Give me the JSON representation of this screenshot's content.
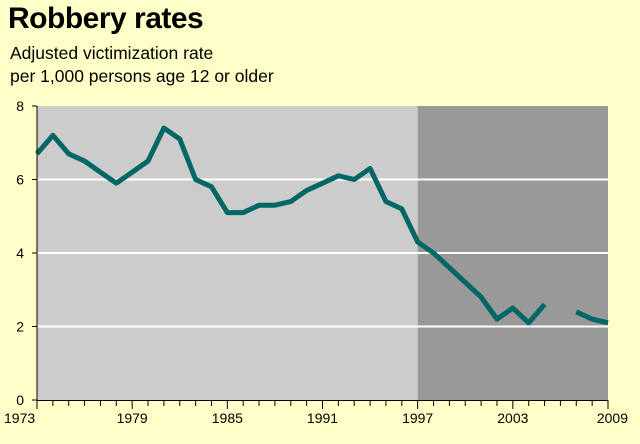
{
  "chart_data": {
    "type": "line",
    "title": "Robbery rates",
    "subtitle_lines": [
      "Adjusted victimization rate",
      "per 1,000 persons age 12 or older"
    ],
    "xlabel": "",
    "ylabel": "",
    "xlim": [
      1973,
      2009
    ],
    "ylim": [
      0,
      8
    ],
    "y_ticks": [
      0,
      2,
      4,
      6,
      8
    ],
    "x_tick_labels": [
      "1973",
      "1979",
      "1985",
      "1991",
      "1997",
      "2003",
      "2009"
    ],
    "grid": "horizontal",
    "shaded_regions": [
      {
        "from": 1973,
        "to": 1997,
        "color": "#CCCCCC"
      },
      {
        "from": 1997,
        "to": 2009,
        "color": "#999999"
      }
    ],
    "line_color": "#006666",
    "series": [
      {
        "segments": [
          [
            [
              1973,
              6.7
            ],
            [
              1974,
              7.2
            ],
            [
              1975,
              6.7
            ],
            [
              1976,
              6.5
            ],
            [
              1977,
              6.2
            ],
            [
              1978,
              5.9
            ],
            [
              1979,
              6.2
            ],
            [
              1980,
              6.5
            ],
            [
              1981,
              7.4
            ],
            [
              1982,
              7.1
            ],
            [
              1983,
              6.0
            ],
            [
              1984,
              5.8
            ],
            [
              1985,
              5.1
            ],
            [
              1986,
              5.1
            ],
            [
              1987,
              5.3
            ],
            [
              1988,
              5.3
            ],
            [
              1989,
              5.4
            ],
            [
              1990,
              5.7
            ],
            [
              1991,
              5.9
            ],
            [
              1992,
              6.1
            ],
            [
              1993,
              6.0
            ],
            [
              1994,
              6.3
            ],
            [
              1995,
              5.4
            ],
            [
              1996,
              5.2
            ],
            [
              1997,
              4.3
            ],
            [
              1998,
              4.0
            ],
            [
              1999,
              3.6
            ],
            [
              2000,
              3.2
            ],
            [
              2001,
              2.8
            ],
            [
              2002,
              2.2
            ],
            [
              2003,
              2.5
            ],
            [
              2004,
              2.1
            ],
            [
              2005,
              2.6
            ]
          ],
          [
            [
              2007,
              2.4
            ],
            [
              2008,
              2.2
            ],
            [
              2009,
              2.1
            ]
          ]
        ]
      }
    ]
  }
}
